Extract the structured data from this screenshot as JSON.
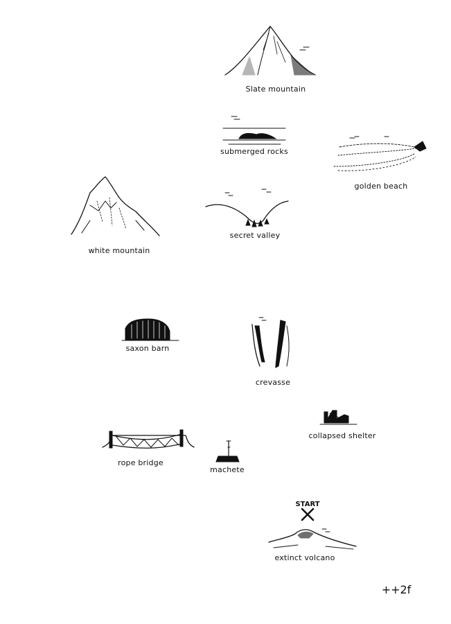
{
  "locations": [
    {
      "id": "slate-mountain",
      "label": "Slate mountain",
      "icon": "slate-mountain-icon"
    },
    {
      "id": "submerged-rocks",
      "label": "submerged rocks",
      "icon": "submerged-rocks-icon"
    },
    {
      "id": "golden-beach",
      "label": "golden beach",
      "icon": "golden-beach-icon"
    },
    {
      "id": "white-mountain",
      "label": "white mountain",
      "icon": "white-mountain-icon"
    },
    {
      "id": "secret-valley",
      "label": "secret valley",
      "icon": "secret-valley-icon"
    },
    {
      "id": "saxon-barn",
      "label": "saxon barn",
      "icon": "saxon-barn-icon"
    },
    {
      "id": "crevasse",
      "label": "crevasse",
      "icon": "crevasse-icon"
    },
    {
      "id": "collapsed-shelter",
      "label": "collapsed shelter",
      "icon": "collapsed-shelter-icon"
    },
    {
      "id": "rope-bridge",
      "label": "rope bridge",
      "icon": "rope-bridge-icon"
    },
    {
      "id": "machete",
      "label": "machete",
      "icon": "machete-icon"
    },
    {
      "id": "extinct-volcano",
      "label": "extinct volcano",
      "icon": "extinct-volcano-icon"
    }
  ],
  "start_marker": {
    "label": "START",
    "icon": "x-mark-icon"
  },
  "signature": "++2f",
  "colors": {
    "ink": "#111111",
    "paper": "#ffffff"
  }
}
